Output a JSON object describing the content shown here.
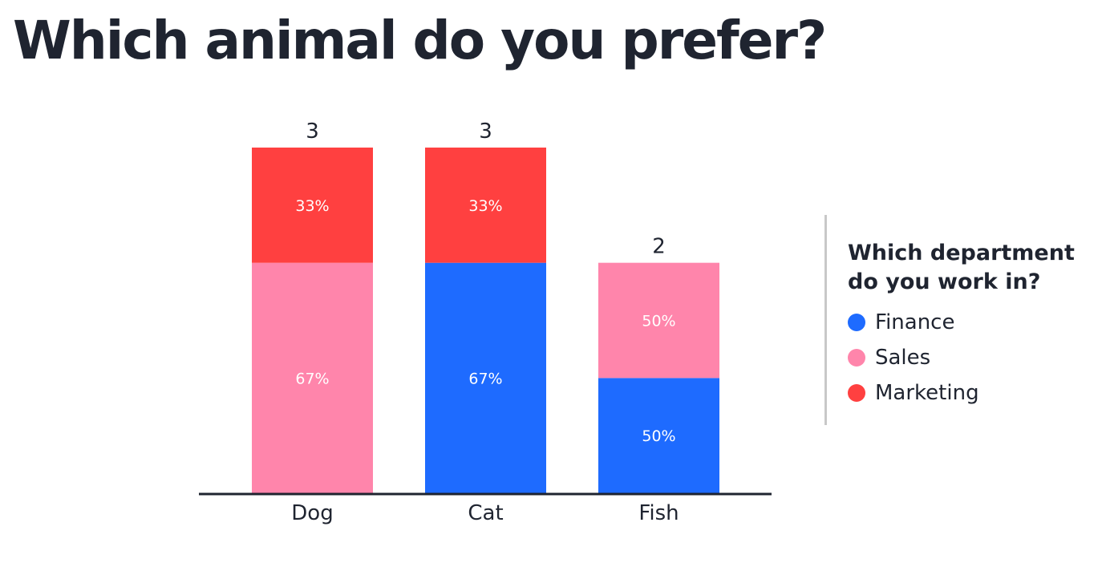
{
  "title": "Which animal do you prefer?",
  "legend": {
    "title": "Which department do you work in?",
    "items": [
      {
        "label": "Finance",
        "color": "#1e6bff"
      },
      {
        "label": "Sales",
        "color": "#ff85ab"
      },
      {
        "label": "Marketing",
        "color": "#ff4040"
      }
    ]
  },
  "chart_data": {
    "type": "bar",
    "stacked": true,
    "categories": [
      "Dog",
      "Cat",
      "Fish"
    ],
    "totals": [
      3,
      3,
      2
    ],
    "series": [
      {
        "name": "Finance",
        "color": "#1e6bff",
        "values": [
          0,
          2,
          1
        ],
        "labels": [
          "",
          "67%",
          "50%"
        ]
      },
      {
        "name": "Sales",
        "color": "#ff85ab",
        "values": [
          2,
          0,
          1
        ],
        "labels": [
          "67%",
          "",
          "50%"
        ]
      },
      {
        "name": "Marketing",
        "color": "#ff4040",
        "values": [
          1,
          1,
          0
        ],
        "labels": [
          "33%",
          "33%",
          ""
        ]
      }
    ],
    "ylim": [
      0,
      3
    ],
    "grid": false,
    "legend_position": "right"
  }
}
